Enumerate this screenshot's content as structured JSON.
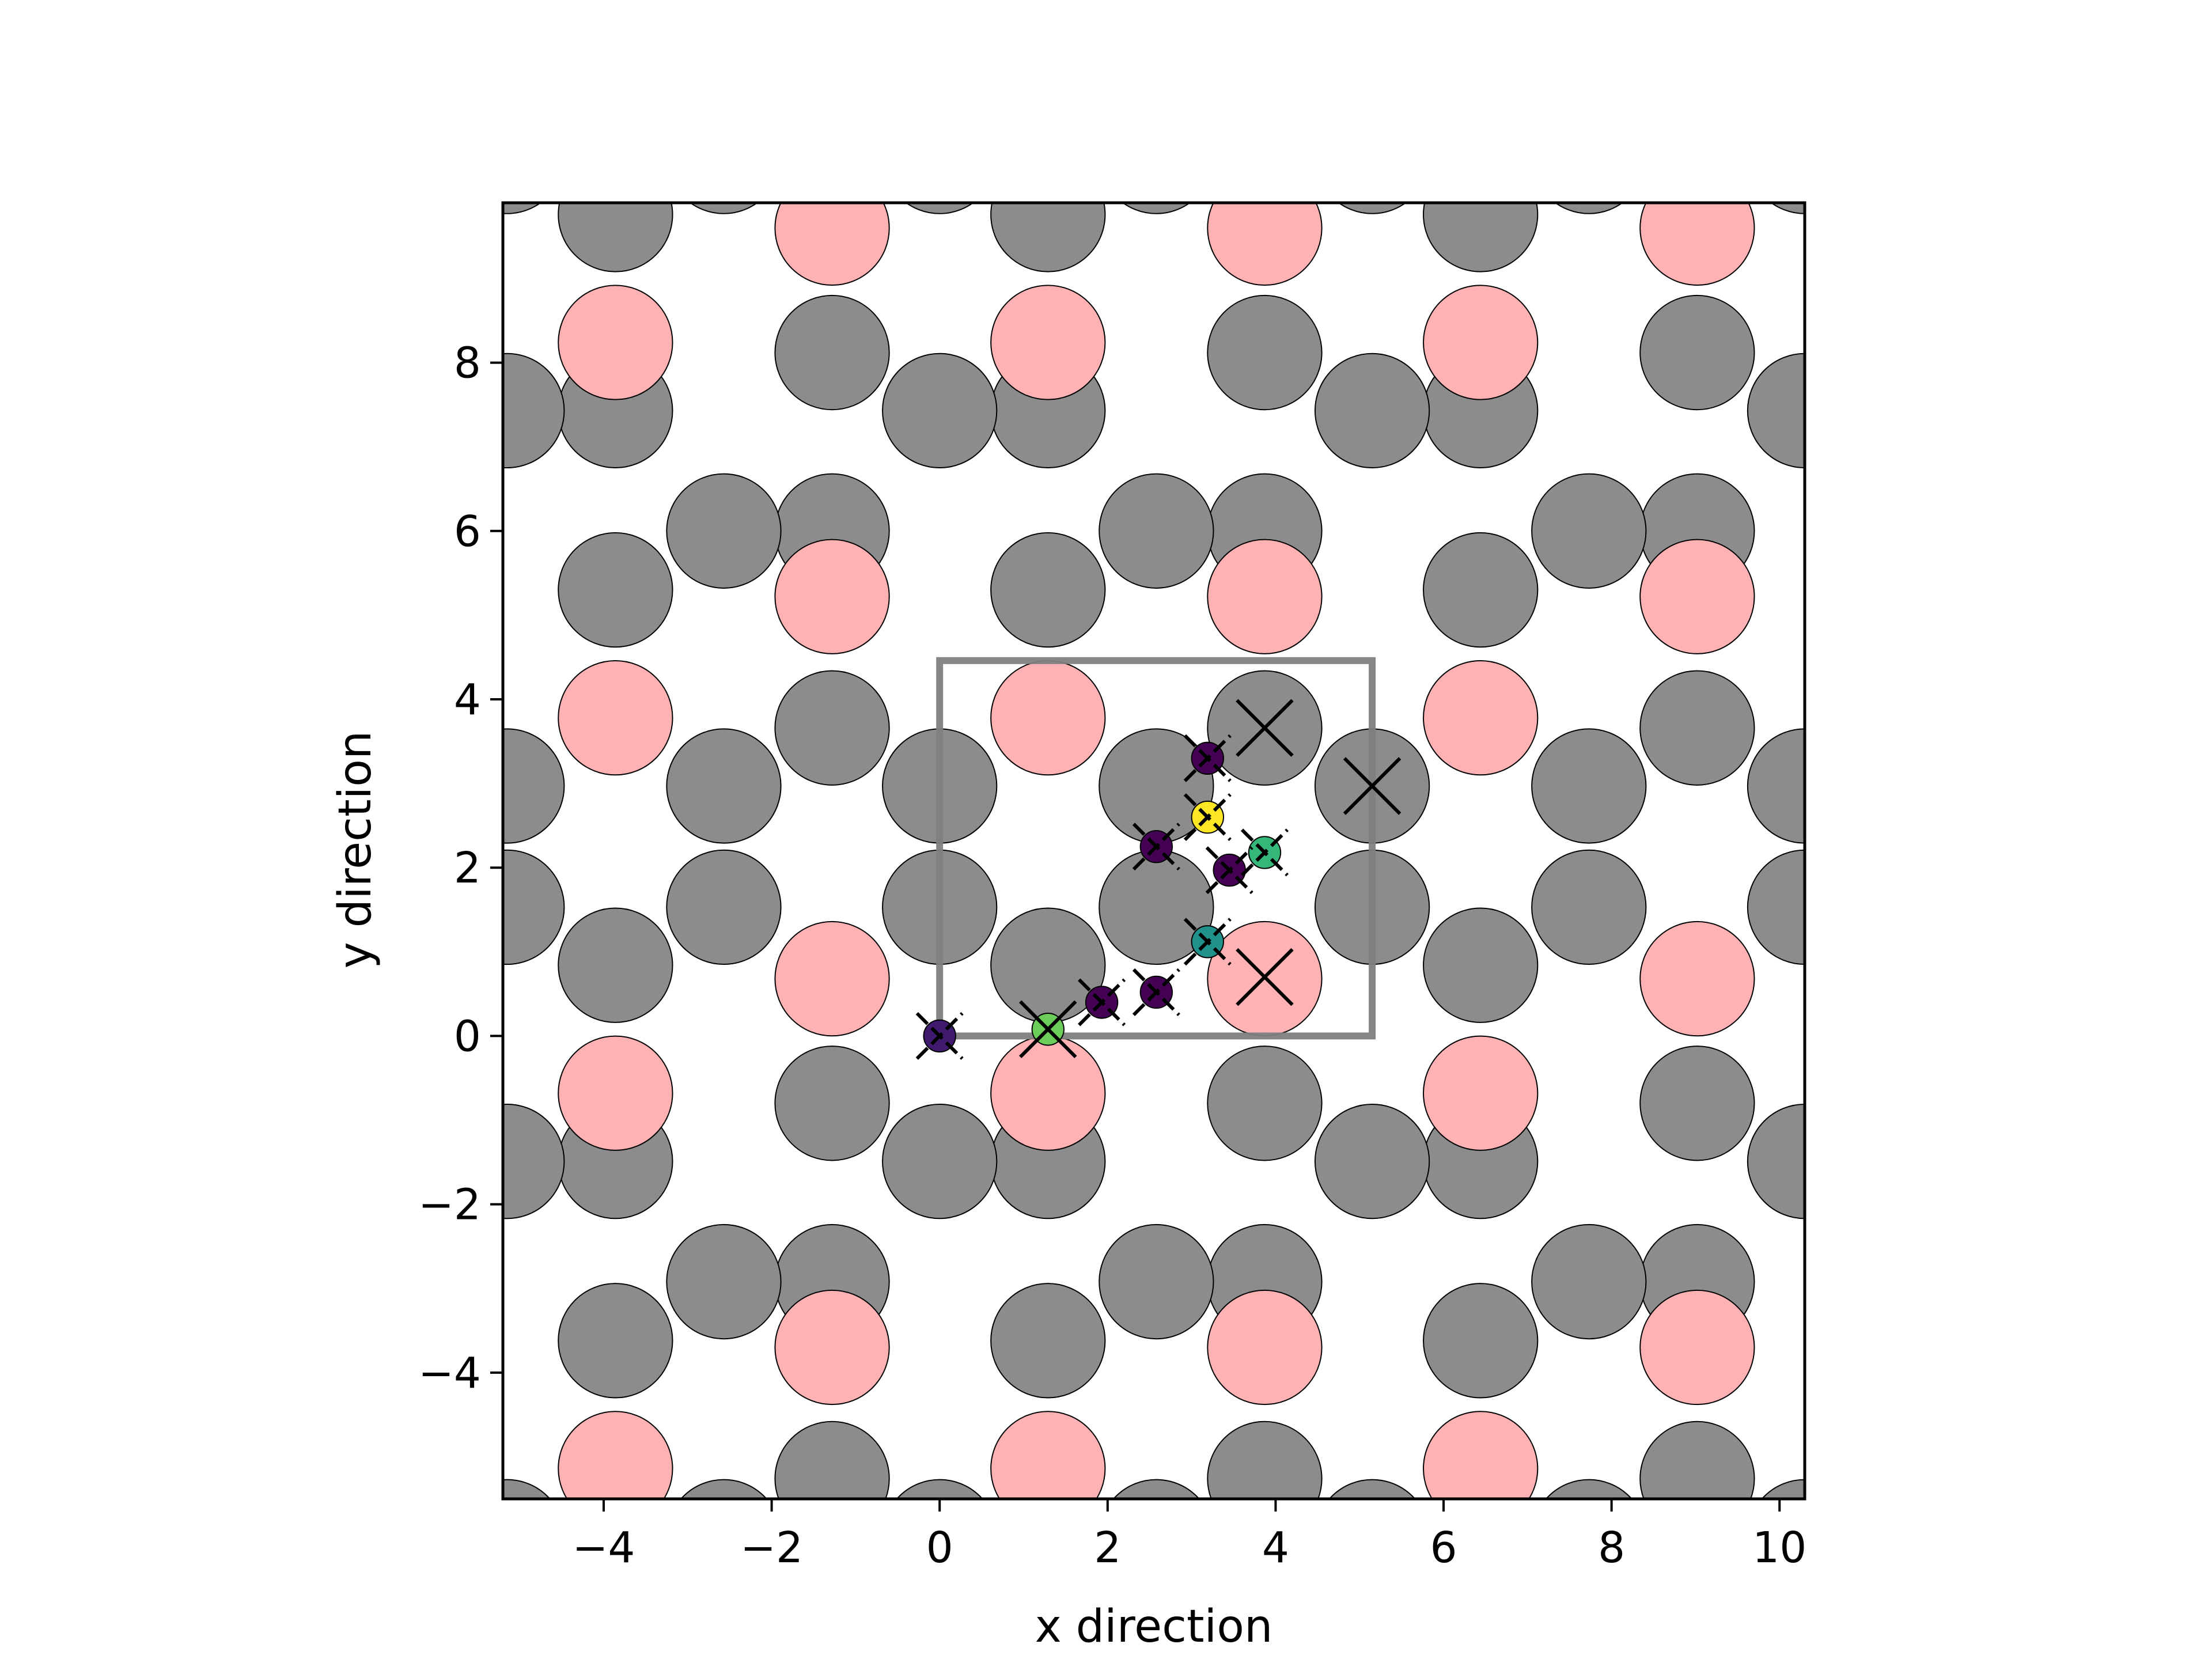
{
  "chart_data": {
    "type": "scatter",
    "title": "",
    "xlabel": "x direction",
    "ylabel": "y direction",
    "xlim": [
      -5.2,
      10.3
    ],
    "ylim": [
      -5.5,
      9.9
    ],
    "x_ticks": [
      -4,
      -2,
      0,
      2,
      4,
      6,
      8,
      10
    ],
    "y_ticks": [
      -4,
      -2,
      0,
      2,
      4,
      6,
      8
    ],
    "x_tick_labels": [
      "−4",
      "−2",
      "0",
      "2",
      "4",
      "6",
      "8",
      "10"
    ],
    "y_tick_labels": [
      "−4",
      "−2",
      "0",
      "2",
      "4",
      "6",
      "8"
    ],
    "grid": false,
    "lattice": {
      "a": [
        5.15,
        0.0
      ],
      "b": [
        0.0,
        8.92
      ],
      "cell_range": {
        "i": [
          -3,
          3
        ],
        "j": [
          -2,
          2
        ]
      },
      "gray_basis": [
        [
          0.0,
          1.53
        ],
        [
          2.58,
          2.97
        ],
        [
          0.0,
          2.97
        ],
        [
          2.58,
          1.53
        ],
        [
          1.29,
          0.84
        ],
        [
          3.87,
          3.66
        ],
        [
          1.29,
          5.3
        ],
        [
          3.87,
          8.12
        ],
        [
          1.29,
          7.43
        ],
        [
          3.87,
          6.0
        ],
        [
          0.0,
          7.43
        ],
        [
          2.58,
          6.0
        ]
      ],
      "pink_basis": [
        [
          1.29,
          3.78
        ],
        [
          3.87,
          0.68
        ],
        [
          1.29,
          8.24
        ],
        [
          3.87,
          5.22
        ]
      ],
      "gray_color": "#8c8c8c",
      "pink_color": "#ffb2b4",
      "edge_color": "#000000"
    },
    "unit_cell": {
      "x": [
        0.0,
        5.15
      ],
      "y": [
        0.0,
        4.46
      ],
      "color": "#808080"
    },
    "sites": [
      {
        "x": 0.0,
        "y": 0.0,
        "color": "#3f1a6e",
        "size": "small",
        "marker": "small"
      },
      {
        "x": 1.29,
        "y": 0.08,
        "color": "#6ccd5a",
        "size": "small",
        "marker": "large"
      },
      {
        "x": 1.93,
        "y": 0.4,
        "color": "#440154",
        "size": "small",
        "marker": "small"
      },
      {
        "x": 2.58,
        "y": 0.52,
        "color": "#440154",
        "size": "small",
        "marker": "small"
      },
      {
        "x": 3.19,
        "y": 1.12,
        "color": "#21918c",
        "size": "small",
        "marker": "small"
      },
      {
        "x": 3.87,
        "y": 0.7,
        "color": "#440154",
        "size": "none",
        "marker": "large"
      },
      {
        "x": 2.58,
        "y": 2.25,
        "color": "#440154",
        "size": "small",
        "marker": "small"
      },
      {
        "x": 3.45,
        "y": 1.97,
        "color": "#440154",
        "size": "small",
        "marker": "small"
      },
      {
        "x": 3.87,
        "y": 2.18,
        "color": "#35b779",
        "size": "small",
        "marker": "small"
      },
      {
        "x": 3.19,
        "y": 2.6,
        "color": "#fde725",
        "size": "small",
        "marker": "small"
      },
      {
        "x": 3.19,
        "y": 3.3,
        "color": "#440154",
        "size": "small",
        "marker": "small"
      },
      {
        "x": 3.87,
        "y": 3.66,
        "color": "#440154",
        "size": "none",
        "marker": "large"
      },
      {
        "x": 5.15,
        "y": 2.97,
        "color": "#440154",
        "size": "none",
        "marker": "large"
      }
    ]
  }
}
